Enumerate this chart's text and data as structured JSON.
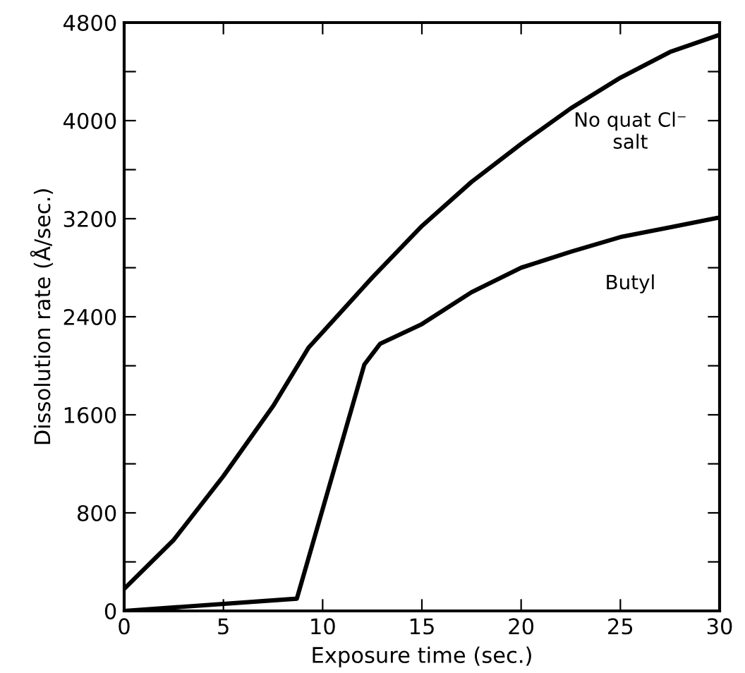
{
  "chart_data": {
    "type": "line",
    "xlabel": "Exposure time (sec.)",
    "ylabel": "Dissolution rate (Å/sec.)",
    "xlim": [
      0,
      30
    ],
    "xticks": [
      0,
      5,
      10,
      15,
      20,
      25,
      30
    ],
    "ylim": [
      0,
      4800
    ],
    "yticks": [
      0,
      {
        "value": 400,
        "label": null
      },
      800,
      {
        "value": 1200,
        "label": null
      },
      1600,
      {
        "value": 2000,
        "label": null
      },
      2400,
      {
        "value": 2800,
        "label": null
      },
      3200,
      {
        "value": 3600,
        "label": null
      },
      4000,
      {
        "value": 4400,
        "label": null
      },
      4800
    ],
    "grid": false,
    "legend": "right",
    "marker": "none",
    "line_style": "solid",
    "series": [
      {
        "name": "No quat Cl⁻\nsalt",
        "color": "#000000",
        "x": [
          0,
          2.5,
          5,
          7.5,
          9.3,
          12.5,
          15,
          17.5,
          20,
          22.5,
          25,
          27.5,
          30
        ],
        "values": [
          180,
          580,
          1100,
          1670,
          2150,
          2720,
          3140,
          3500,
          3810,
          4100,
          4350,
          4560,
          4700
        ]
      },
      {
        "name": "Butyl",
        "color": "#000000",
        "x": [
          0,
          8.7,
          12.1,
          12.9,
          15,
          17.5,
          20,
          22.5,
          25,
          27.5,
          30
        ],
        "values": [
          0,
          100,
          2010,
          2180,
          2340,
          2600,
          2800,
          2930,
          3050,
          3130,
          3210
        ]
      }
    ]
  }
}
